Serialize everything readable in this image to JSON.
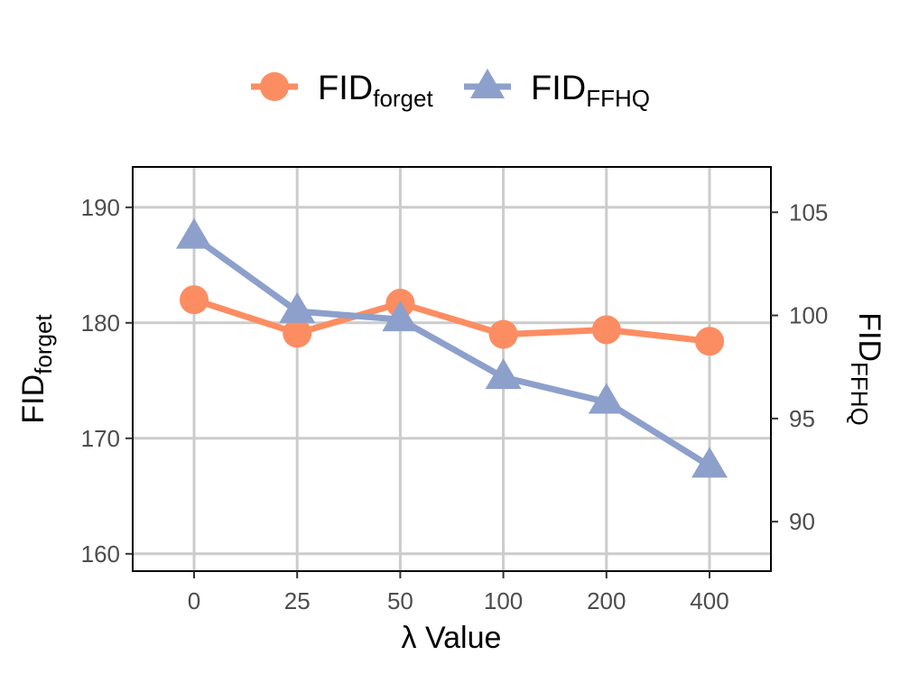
{
  "chart_data": {
    "type": "line",
    "categories": [
      "0",
      "25",
      "50",
      "100",
      "200",
      "400"
    ],
    "x_label": "λ Value",
    "y_left": {
      "label_main": "FID",
      "label_sub": "forget",
      "lim": [
        158.5,
        193.5
      ],
      "ticks": [
        160,
        170,
        180,
        190
      ],
      "tick_labels": [
        "160",
        "170",
        "180",
        "190"
      ]
    },
    "y_right": {
      "label_main": "FID",
      "label_sub": "FFHQ",
      "lim": [
        87.6,
        107.2
      ],
      "ticks": [
        90,
        95,
        100,
        105
      ],
      "tick_labels": [
        "90",
        "95",
        "100",
        "105"
      ]
    },
    "series": [
      {
        "name_main": "FID",
        "name_sub": "forget",
        "axis": "left",
        "marker": "circle",
        "color": "#FC8D62",
        "values": [
          182.0,
          179.1,
          181.7,
          179.0,
          179.4,
          178.4
        ]
      },
      {
        "name_main": "FID",
        "name_sub": "FFHQ",
        "axis": "right",
        "marker": "triangle",
        "color": "#8DA0CB",
        "values": [
          103.8,
          100.2,
          99.8,
          97.0,
          95.8,
          92.7
        ]
      }
    ],
    "grid": true,
    "legend_position": "top-center"
  }
}
